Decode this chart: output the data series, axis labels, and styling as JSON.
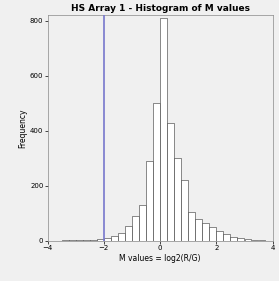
{
  "title": "HS Array 1 - Histogram of M values",
  "xlabel": "M values = log2(R/G)",
  "ylabel": "Frequency",
  "xlim": [
    -4,
    4
  ],
  "ylim": [
    0,
    820
  ],
  "yticks": [
    0,
    200,
    400,
    600,
    800
  ],
  "xticks": [
    -4,
    -2,
    0,
    2,
    4
  ],
  "vline_x": -2.0,
  "vline_color": "#7777CC",
  "bar_color": "white",
  "bar_edge_color": "#333333",
  "background_color": "#f0f0f0",
  "bin_edges": [
    -4.0,
    -3.75,
    -3.5,
    -3.25,
    -3.0,
    -2.75,
    -2.5,
    -2.25,
    -2.0,
    -1.75,
    -1.5,
    -1.25,
    -1.0,
    -0.75,
    -0.5,
    -0.25,
    0.0,
    0.25,
    0.5,
    0.75,
    1.0,
    1.25,
    1.5,
    1.75,
    2.0,
    2.25,
    2.5,
    2.75,
    3.0,
    3.25,
    3.5,
    3.75,
    4.0
  ],
  "counts": [
    1,
    1,
    2,
    2,
    2,
    3,
    4,
    6,
    10,
    18,
    30,
    55,
    90,
    130,
    290,
    500,
    810,
    430,
    300,
    220,
    105,
    80,
    65,
    50,
    35,
    25,
    15,
    10,
    5,
    3,
    2,
    1
  ]
}
